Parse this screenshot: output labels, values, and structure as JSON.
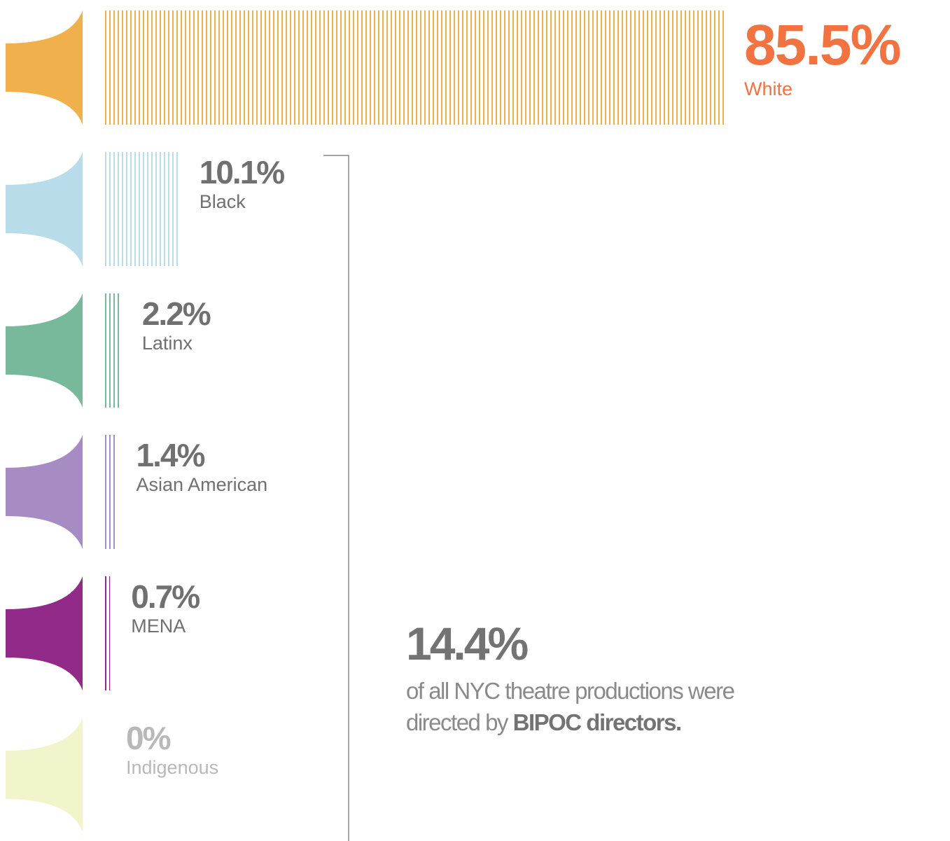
{
  "chart_data": {
    "type": "bar",
    "categories": [
      "White",
      "Black",
      "Latinx",
      "Asian American",
      "MENA",
      "Indigenous"
    ],
    "values": [
      85.5,
      10.1,
      2.2,
      1.4,
      0.7,
      0
    ],
    "value_labels": [
      "85.5%",
      "10.1%",
      "2.2%",
      "1.4%",
      "0.7%",
      "0%"
    ],
    "colors": [
      "#f0b04c",
      "#b9dcea",
      "#78b99c",
      "#a68cc3",
      "#922a8a",
      "#f2f4cc"
    ],
    "annotation": {
      "value_label": "14.4%",
      "text": "of all NYC theatre productions were",
      "text2": "directed by",
      "emphasis": "BIPOC directors."
    }
  }
}
